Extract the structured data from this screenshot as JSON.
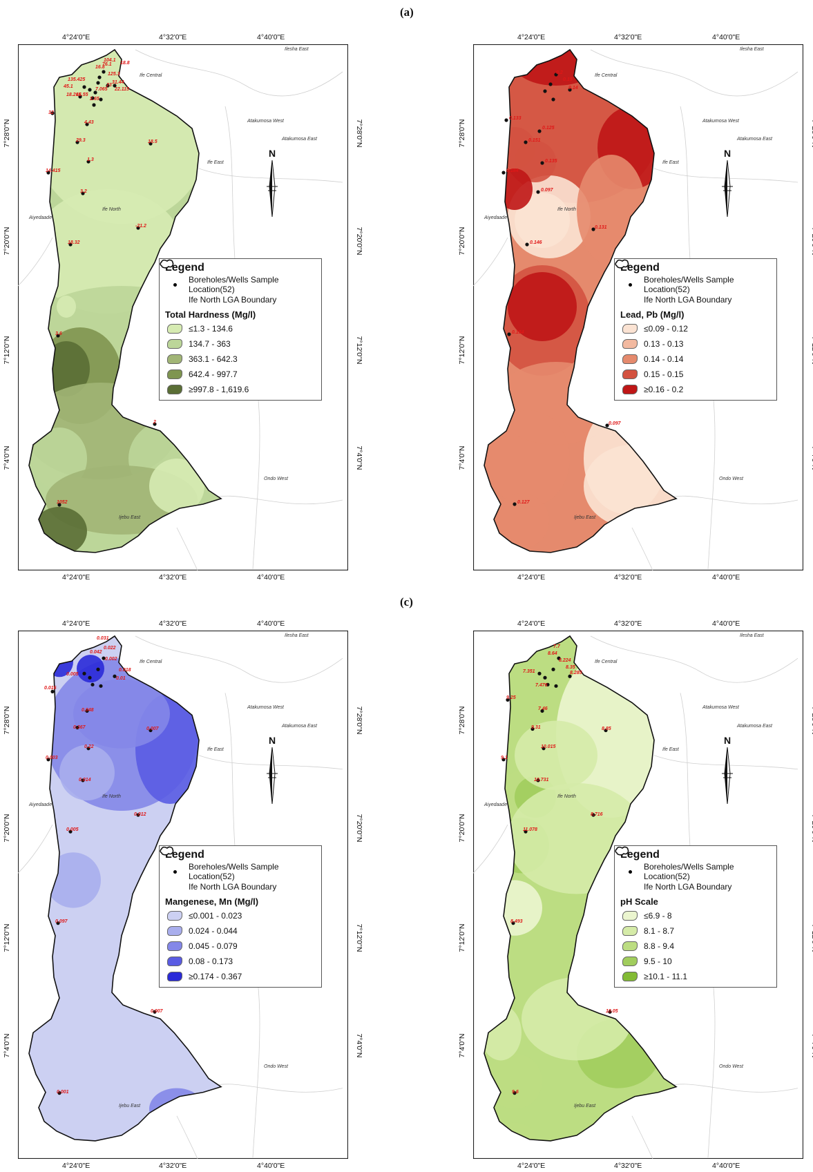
{
  "panels": [
    {
      "id": "a",
      "label": "(a)",
      "map_title": "Total Hardness (Mg/l)",
      "colors": [
        "#d6ebb2",
        "#bcd699",
        "#a1b576",
        "#7f9550",
        "#5a6e35"
      ],
      "classes": [
        "≤1.3 - 134.6",
        "134.7 - 363",
        "363.1 - 642.3",
        "642.4 - 997.7",
        "≥997.8 - 1,619.6"
      ],
      "values": [
        "104.1",
        "125.3",
        "16.8",
        "32",
        "4.43",
        "29.3",
        "1.3",
        "14.415",
        "3.2",
        "18.32",
        "-21.2",
        "18.5",
        "2",
        "3.6",
        "1052",
        "135.425",
        "45.1",
        "18.265",
        "16.55",
        "31.44",
        "22.115",
        "23",
        "7.065",
        "2.65",
        "76.1",
        "18.8"
      ],
      "places": [
        "Ife Central",
        "Atakumosa West",
        "Atakumosa East",
        "Ife East",
        "Ife North",
        "Aiyedaade",
        "Ondo West",
        "Ijebu East",
        "Ilesha East"
      ]
    },
    {
      "id": "b",
      "label": "",
      "map_title": "Lead, Pb (Mg/l)",
      "colors": [
        "#fbe3d3",
        "#f2b9a0",
        "#e58a6d",
        "#d35240",
        "#bf1616"
      ],
      "classes": [
        "≤0.09 - 0.12",
        "0.13 - 0.13",
        "0.14 - 0.14",
        "0.15 - 0.15",
        "≥0.16 - 0.2"
      ],
      "values": [
        "0.133",
        "0.125",
        "0.151",
        "0.135",
        "0.184",
        "0.097",
        "0.131",
        "0.146",
        "0.154",
        "0.097",
        "0.127",
        "0.14",
        "0.15",
        "0.2"
      ],
      "places": [
        "Ife Central",
        "Atakumosa West",
        "Atakumosa East",
        "Ife East",
        "Ife North",
        "Aiyedaade",
        "Ondo West",
        "Ijebu East",
        "Ilesha East"
      ]
    },
    {
      "id": "c",
      "label": "(c)",
      "map_title": "Mangenese, Mn (Mg/l)",
      "colors": [
        "#ccd0f2",
        "#a9aeed",
        "#8487e8",
        "#5a5ce3",
        "#2a2ad8"
      ],
      "classes": [
        "≤0.001 - 0.023",
        "0.024 - 0.044",
        "0.045 - 0.079",
        "0.08 - 0.173",
        "≥0.174 - 0.367"
      ],
      "values": [
        "0.031",
        "0.022",
        "0.042",
        "0.016",
        "0.048",
        "0.367",
        "0.22",
        "0.003",
        "0.014",
        "0.005",
        "0.012",
        "0.007",
        "0.007",
        "0.097",
        "0.001",
        "0.005",
        "0.002",
        "0.018",
        "0.01"
      ],
      "places": [
        "Ife Central",
        "Atakumosa West",
        "Atakumosa East",
        "Ife East",
        "Ife North",
        "Aiyedaade",
        "Ondo West",
        "Ijebu East",
        "Ilesha East"
      ]
    },
    {
      "id": "d",
      "label": "",
      "map_title": "pH Scale",
      "colors": [
        "#ebf5cf",
        "#d5eba8",
        "#bcdd82",
        "#a1cd5d",
        "#83bb35"
      ],
      "classes": [
        "≤6.9 - 8",
        "8.1 - 8.7",
        "8.8 - 9.4",
        "9.5 - 10",
        "≥10.1 - 11.1"
      ],
      "values": [
        "7.7",
        "8.64",
        "8.224",
        "8.35",
        "7.351",
        "8.285",
        "7.476",
        "9.25",
        "7.46",
        "9.31",
        "8.85",
        "10.015",
        "9.1",
        "10.731",
        "11.078",
        "8.716",
        "8.493",
        "10.05",
        "9.6"
      ],
      "places": [
        "Ife Central",
        "Atakumosa West",
        "Atakumosa East",
        "Ife East",
        "Ife North",
        "Aiyedaade",
        "Ondo West",
        "Ijebu East",
        "Ilesha East"
      ]
    }
  ],
  "legend": {
    "title": "Legend",
    "point_label": "Boreholes/Wells Sample Location(52)",
    "boundary_label": "Ife North LGA Boundary"
  },
  "ticks": {
    "lon": [
      "4°24'0\"E",
      "4°32'0\"E",
      "4°40'0\"E"
    ],
    "lat": [
      "7°28'0\"N",
      "7°20'0\"N",
      "7°12'0\"N",
      "7°4'0\"N"
    ]
  },
  "north_label": "N"
}
